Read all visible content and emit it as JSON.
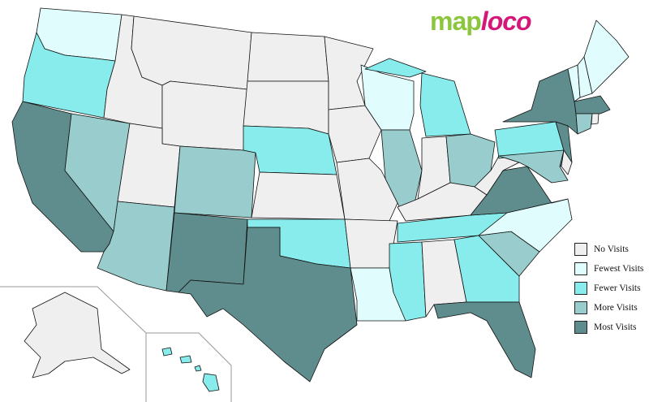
{
  "logo": {
    "part1": "map",
    "part2": "loco"
  },
  "colors": {
    "none": "#efefef",
    "fewest": "#e0fcfc",
    "fewer": "#88ecec",
    "more": "#99cccc",
    "most": "#5f8c8c"
  },
  "legend": [
    {
      "key": "none",
      "label": "No Visits"
    },
    {
      "key": "fewest",
      "label": "Fewest Visits"
    },
    {
      "key": "fewer",
      "label": "Fewer Visits"
    },
    {
      "key": "more",
      "label": "More Visits"
    },
    {
      "key": "most",
      "label": "Most Visits"
    }
  ],
  "states": {
    "WA": "fewest",
    "OR": "fewer",
    "CA": "most",
    "NV": "more",
    "ID": "none",
    "MT": "none",
    "WY": "none",
    "UT": "none",
    "AZ": "more",
    "CO": "more",
    "NM": "most",
    "ND": "none",
    "SD": "none",
    "NE": "fewer",
    "KS": "none",
    "OK": "fewer",
    "TX": "most",
    "MN": "none",
    "IA": "none",
    "MO": "none",
    "AR": "none",
    "LA": "fewest",
    "WI": "fewest",
    "IL": "more",
    "MI": "fewer",
    "IN": "none",
    "OH": "more",
    "KY": "none",
    "TN": "fewer",
    "MS": "fewer",
    "AL": "none",
    "GA": "fewer",
    "FL": "most",
    "SC": "more",
    "NC": "fewest",
    "VA": "most",
    "WV": "none",
    "PA": "fewer",
    "NY": "most",
    "NJ": "most",
    "MD": "more",
    "DE": "none",
    "VT": "fewest",
    "NH": "fewest",
    "ME": "fewest",
    "MA": "most",
    "CT": "more",
    "RI": "none",
    "AK": "none",
    "HI": "fewer"
  }
}
